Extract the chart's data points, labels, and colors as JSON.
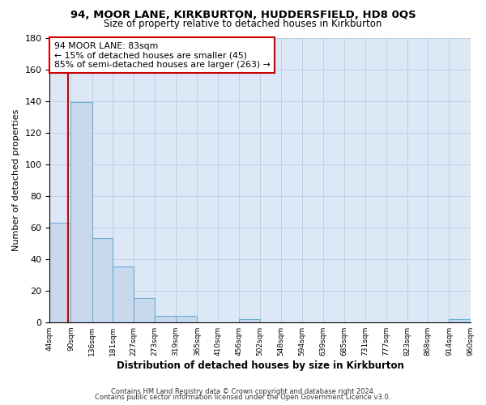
{
  "title_line1": "94, MOOR LANE, KIRKBURTON, HUDDERSFIELD, HD8 0QS",
  "title_line2": "Size of property relative to detached houses in Kirkburton",
  "xlabel": "Distribution of detached houses by size in Kirkburton",
  "ylabel": "Number of detached properties",
  "bar_edges": [
    44,
    90,
    136,
    181,
    227,
    273,
    319,
    365,
    410,
    456,
    502,
    548,
    594,
    639,
    685,
    731,
    777,
    823,
    868,
    914,
    960
  ],
  "bar_heights": [
    63,
    139,
    53,
    35,
    15,
    4,
    4,
    0,
    0,
    2,
    0,
    0,
    0,
    0,
    0,
    0,
    0,
    0,
    0,
    2
  ],
  "bar_color": "#c8d9ee",
  "bar_edge_color": "#6baed6",
  "annotation_text": "94 MOOR LANE: 83sqm\n← 15% of detached houses are smaller (45)\n85% of semi-detached houses are larger (263) →",
  "vline_x": 83,
  "vline_color": "#cc0000",
  "annotation_box_color": "#ffffff",
  "annotation_box_edge_color": "#cc0000",
  "ylim": [
    0,
    180
  ],
  "yticks": [
    0,
    20,
    40,
    60,
    80,
    100,
    120,
    140,
    160,
    180
  ],
  "tick_labels": [
    "44sqm",
    "90sqm",
    "136sqm",
    "181sqm",
    "227sqm",
    "273sqm",
    "319sqm",
    "365sqm",
    "410sqm",
    "456sqm",
    "502sqm",
    "548sqm",
    "594sqm",
    "639sqm",
    "685sqm",
    "731sqm",
    "777sqm",
    "823sqm",
    "868sqm",
    "914sqm",
    "960sqm"
  ],
  "footnote1": "Contains HM Land Registry data © Crown copyright and database right 2024.",
  "footnote2": "Contains public sector information licensed under the Open Government Licence v3.0.",
  "bg_color": "#dce8f5",
  "grid_color": "#b8cce0"
}
